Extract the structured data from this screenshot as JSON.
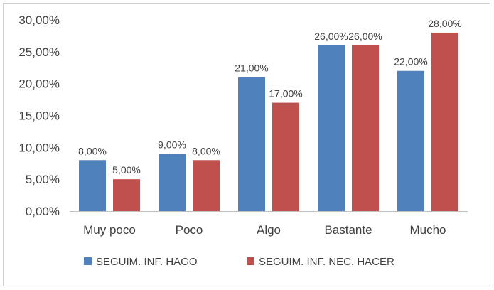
{
  "chart_data": {
    "type": "bar",
    "categories": [
      "Muy poco",
      "Poco",
      "Algo",
      "Bastante",
      "Mucho"
    ],
    "series": [
      {
        "name": "SEGUIM. INF. HAGO",
        "values": [
          8,
          9,
          21,
          26,
          22
        ],
        "color": "#4f81bd"
      },
      {
        "name": "SEGUIM. INF. NEC. HACER",
        "values": [
          5,
          8,
          17,
          26,
          28
        ],
        "color": "#c0504d"
      }
    ],
    "data_labels": [
      [
        "8,00%",
        "9,00%",
        "21,00%",
        "26,00%",
        "22,00%"
      ],
      [
        "5,00%",
        "8,00%",
        "17,00%",
        "26,00%",
        "28,00%"
      ]
    ],
    "ylim": [
      0,
      30
    ],
    "yticks": [
      0,
      5,
      10,
      15,
      20,
      25,
      30
    ],
    "ytick_labels": [
      "0,00%",
      "5,00%",
      "10,00%",
      "15,00%",
      "20,00%",
      "25,00%",
      "30,00%"
    ],
    "title": "",
    "xlabel": "",
    "ylabel": "",
    "grid": false,
    "legend_position": "bottom"
  }
}
